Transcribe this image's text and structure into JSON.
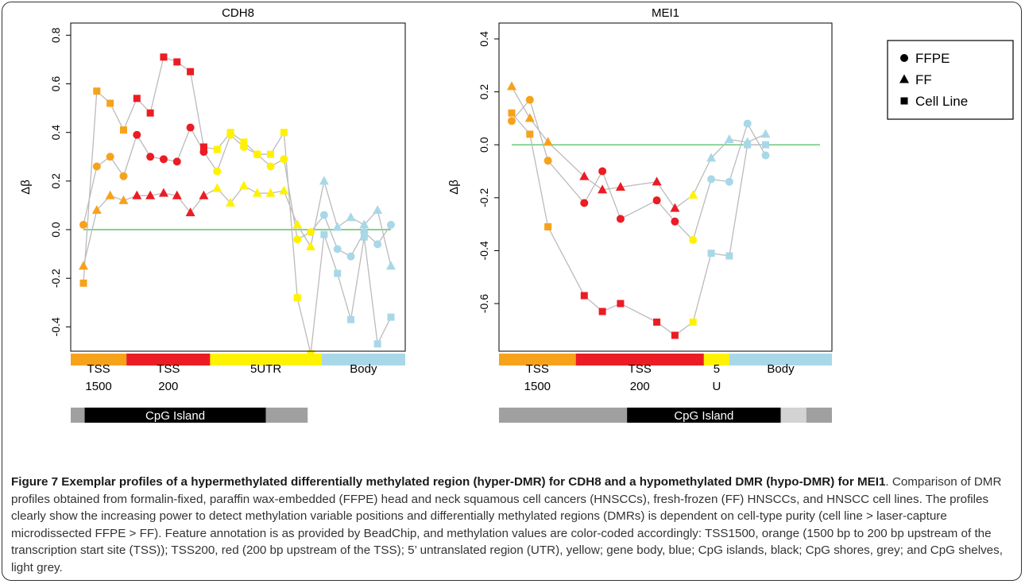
{
  "chart_data": [
    {
      "type": "line",
      "title": "CDH8",
      "ylabel": "Δβ",
      "ylim": [
        -0.5,
        0.85
      ],
      "yticks": [
        -0.4,
        -0.2,
        0.0,
        0.2,
        0.4,
        0.6,
        0.8
      ],
      "n_positions": 24,
      "reference_line": 0,
      "series": [
        {
          "shape": "circle",
          "values": [
            0.02,
            0.26,
            0.3,
            0.22,
            0.39,
            0.3,
            0.29,
            0.28,
            0.42,
            0.32,
            0.24,
            0.39,
            0.34,
            0.31,
            0.26,
            0.29,
            -0.04,
            -0.01,
            0.06,
            -0.08,
            -0.11,
            -0.01,
            -0.06,
            0.02
          ]
        },
        {
          "shape": "triangle",
          "values": [
            -0.15,
            0.08,
            0.14,
            0.12,
            0.14,
            0.14,
            0.15,
            0.14,
            0.07,
            0.14,
            0.17,
            0.11,
            0.18,
            0.15,
            0.15,
            0.16,
            0.02,
            -0.07,
            0.2,
            0.01,
            0.05,
            0.02,
            0.08,
            -0.15
          ]
        },
        {
          "shape": "square",
          "values": [
            -0.22,
            0.57,
            0.52,
            0.41,
            0.54,
            0.48,
            0.71,
            0.69,
            0.65,
            0.34,
            0.33,
            0.4,
            0.36,
            0.31,
            0.31,
            0.4,
            -0.28,
            -0.51,
            -0.02,
            -0.18,
            -0.37,
            -0.03,
            -0.47,
            -0.36
          ]
        }
      ],
      "point_colors": [
        "#F7A21B",
        "#F7A21B",
        "#F7A21B",
        "#F7A21B",
        "#EC1C24",
        "#EC1C24",
        "#EC1C24",
        "#EC1C24",
        "#EC1C24",
        "#EC1C24",
        "#FFF200",
        "#FFF200",
        "#FFF200",
        "#FFF200",
        "#FFF200",
        "#FFF200",
        "#FFF200",
        "#FFF200",
        "#A8D8E8",
        "#A8D8E8",
        "#A8D8E8",
        "#A8D8E8",
        "#A8D8E8",
        "#A8D8E8"
      ],
      "features": [
        {
          "name": "TSS1500",
          "color": "#F7A21B",
          "start": 0,
          "end": 4,
          "label_lines": [
            "TSS",
            "1500"
          ]
        },
        {
          "name": "TSS200",
          "color": "#EC1C24",
          "start": 4,
          "end": 10,
          "label_lines": [
            "TSS",
            "200"
          ]
        },
        {
          "name": "5UTR",
          "color": "#FFF200",
          "start": 10,
          "end": 18,
          "label_lines": [
            "5UTR"
          ]
        },
        {
          "name": "Body",
          "color": "#A8D8E8",
          "start": 18,
          "end": 24,
          "label_lines": [
            "Body"
          ]
        }
      ],
      "cpg": [
        {
          "start": 0,
          "end": 1,
          "color": "#a0a0a0",
          "label": ""
        },
        {
          "start": 1,
          "end": 14,
          "color": "#000000",
          "label": "CpG Island"
        },
        {
          "start": 14,
          "end": 17,
          "color": "#a0a0a0",
          "label": ""
        }
      ]
    },
    {
      "type": "line",
      "title": "MEI1",
      "ylabel": "Δβ",
      "ylim": [
        -0.78,
        0.46
      ],
      "yticks": [
        -0.6,
        -0.4,
        -0.2,
        0.0,
        0.2,
        0.4
      ],
      "n_positions": 18,
      "reference_line": 0,
      "series": [
        {
          "shape": "circle",
          "values": [
            0.09,
            0.17,
            -0.06,
            null,
            -0.22,
            -0.1,
            -0.28,
            null,
            -0.21,
            -0.29,
            -0.36,
            -0.13,
            -0.14,
            0.08,
            -0.04
          ]
        },
        {
          "shape": "triangle",
          "values": [
            0.22,
            0.1,
            0.01,
            null,
            -0.12,
            -0.17,
            -0.16,
            null,
            -0.14,
            -0.24,
            -0.19,
            -0.05,
            0.02,
            0.01,
            0.04
          ]
        },
        {
          "shape": "square",
          "values": [
            0.12,
            0.04,
            -0.31,
            null,
            -0.57,
            -0.63,
            -0.6,
            null,
            -0.67,
            -0.72,
            -0.67,
            -0.41,
            -0.42,
            0.0,
            0.0
          ]
        }
      ],
      "x_positions": [
        0,
        1,
        2,
        null,
        4,
        5,
        6,
        null,
        8,
        9,
        10,
        11,
        12,
        13,
        14
      ],
      "point_colors": [
        "#F7A21B",
        "#F7A21B",
        "#F7A21B",
        null,
        "#EC1C24",
        "#EC1C24",
        "#EC1C24",
        null,
        "#EC1C24",
        "#EC1C24",
        "#FFF200",
        "#A8D8E8",
        "#A8D8E8",
        "#A8D8E8",
        "#A8D8E8"
      ],
      "features": [
        {
          "name": "TSS1500",
          "color": "#F7A21B",
          "start": 0,
          "end": 3,
          "label_lines": [
            "TSS",
            "1500"
          ]
        },
        {
          "name": "TSS200",
          "color": "#EC1C24",
          "start": 3,
          "end": 8,
          "label_lines": [
            "TSS",
            "200"
          ]
        },
        {
          "name": "5U",
          "color": "#FFF200",
          "start": 8,
          "end": 9,
          "label_lines": [
            "5",
            "U"
          ]
        },
        {
          "name": "Body",
          "color": "#A8D8E8",
          "start": 9,
          "end": 13,
          "label_lines": [
            "Body"
          ]
        }
      ],
      "cpg": [
        {
          "start": 0,
          "end": 5,
          "color": "#a0a0a0",
          "label": ""
        },
        {
          "start": 5,
          "end": 11,
          "color": "#000000",
          "label": "CpG Island"
        },
        {
          "start": 11,
          "end": 12,
          "color": "#d3d3d3",
          "label": ""
        },
        {
          "start": 12,
          "end": 13,
          "color": "#a0a0a0",
          "label": ""
        }
      ]
    }
  ],
  "legend": {
    "placement": "top-right",
    "entries": [
      {
        "shape": "circle",
        "label": "FFPE"
      },
      {
        "shape": "triangle",
        "label": "FF"
      },
      {
        "shape": "square",
        "label": "Cell Line"
      }
    ]
  },
  "colors": {
    "tss1500": "#F7A21B",
    "tss200": "#EC1C24",
    "utr": "#FFF200",
    "body": "#A8D8E8",
    "connector": "#bbbbbb",
    "zero_line": "#3cb44b"
  },
  "caption": {
    "bold": "Figure 7 Exemplar profiles of a hypermethylated differentially methylated region (hyper-DMR) for CDH8 and a hypomethylated DMR (hypo-DMR) for MEI1",
    "text": ". Comparison of DMR profiles obtained from formalin-fixed, paraffin wax-embedded (FFPE) head and neck squamous cell cancers (HNSCCs), fresh-frozen (FF) HNSCCs, and HNSCC cell lines. The profiles clearly show the increasing power to detect methylation variable positions and differentially methylated regions (DMRs) is dependent on cell-type purity (cell line > laser-capture microdissected FFPE > FF). Feature annotation is as provided by BeadChip, and methylation values are color-coded accordingly: TSS1500, orange (1500 bp to 200 bp upstream of the transcription start site (TSS)); TSS200, red (200 bp upstream of the TSS); 5’ untranslated region (UTR), yellow; gene body, blue; CpG islands, black; CpG shores, grey; and CpG shelves, light grey."
  }
}
